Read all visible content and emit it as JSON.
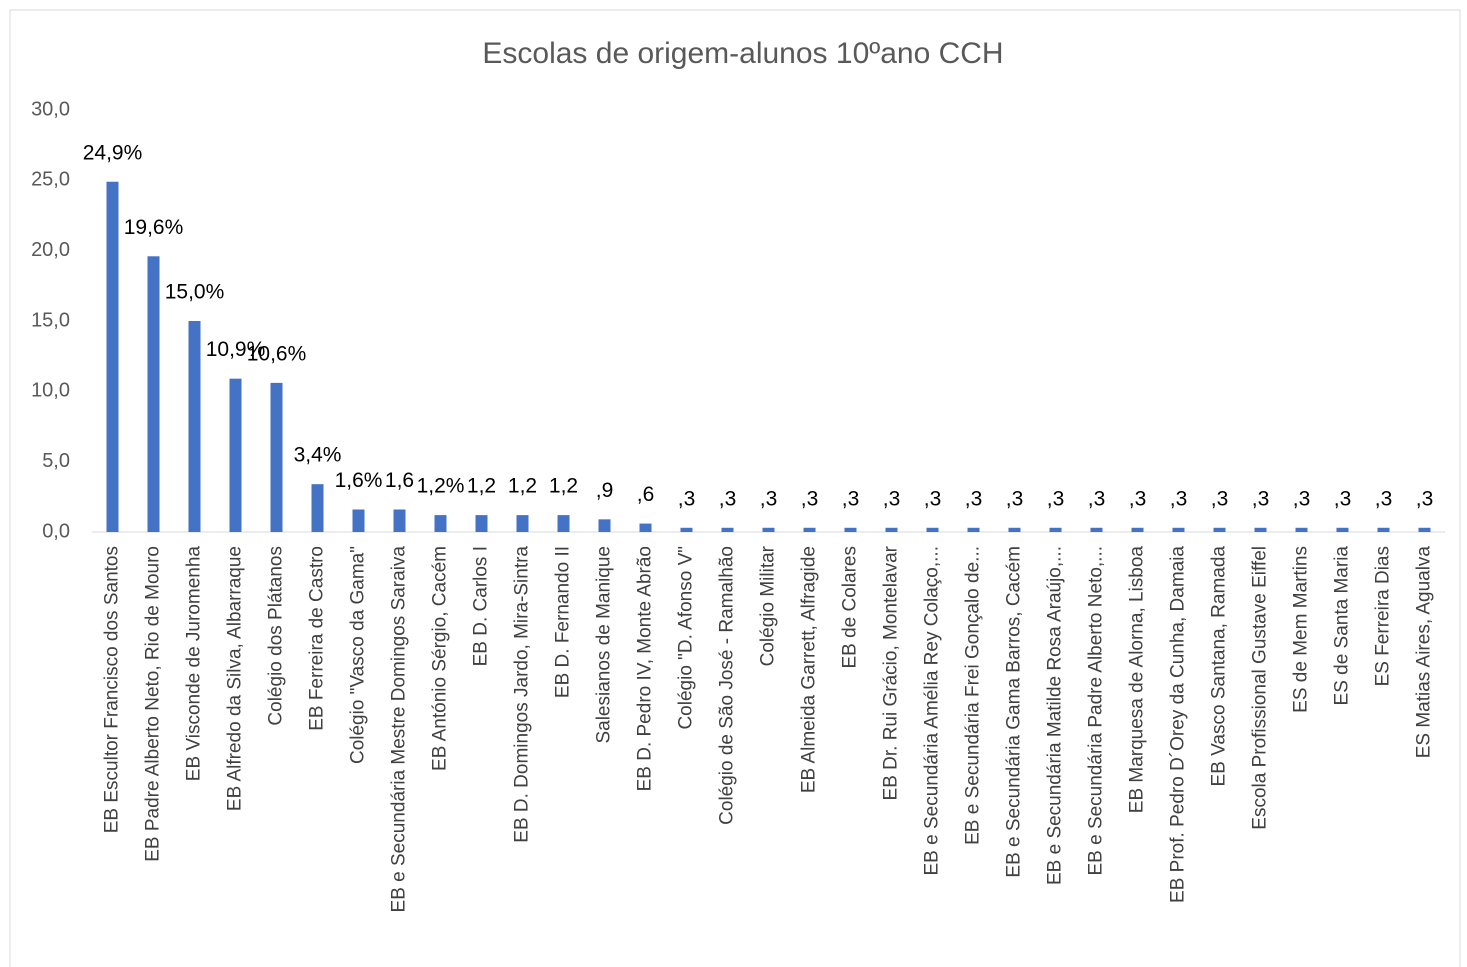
{
  "chart_data": {
    "type": "bar",
    "title": "Escolas de origem-alunos 10ºano CCH",
    "categories": [
      "EB Escultor Francisco dos Santos",
      "EB Padre Alberto Neto, Rio de Mouro",
      "EB Visconde de Juromenha",
      "EB Alfredo da Silva, Albarraque",
      "Colégio dos Plátanos",
      "EB Ferreira de Castro",
      "Colégio \"Vasco da Gama\"",
      "EB e Secundária Mestre Domingos Saraiva",
      "EB António Sérgio, Cacém",
      "EB D. Carlos I",
      "EB D. Domingos Jardo, Mira-Sintra",
      "EB D. Fernando II",
      "Salesianos de Manique",
      "EB D. Pedro IV, Monte Abrão",
      "Colégio \"D. Afonso V\"",
      "Colégio de São José - Ramalhão",
      "Colégio Militar",
      "EB Almeida Garrett, Alfragide",
      "EB de Colares",
      "EB Dr. Rui Grácio, Montelavar",
      "EB e Secundária Amélia Rey Colaço,...",
      "EB e Secundária Frei Gonçalo de...",
      "EB e Secundária Gama Barros, Cacém",
      "EB e Secundária Matilde Rosa Araújo,...",
      "EB e Secundária Padre Alberto Neto,...",
      "EB Marquesa de Alorna, Lisboa",
      "EB Prof. Pedro D´Orey da Cunha, Damaia",
      "EB Vasco Santana, Ramada",
      "Escola Profissional Gustave Eiffel",
      "ES de Mem Martins",
      "ES de Santa Maria",
      "ES Ferreira Dias",
      "ES Matias Aires, Agualva"
    ],
    "values": [
      24.9,
      19.6,
      15.0,
      10.9,
      10.6,
      3.4,
      1.6,
      1.6,
      1.2,
      1.2,
      1.2,
      1.2,
      0.9,
      0.6,
      0.3,
      0.3,
      0.3,
      0.3,
      0.3,
      0.3,
      0.3,
      0.3,
      0.3,
      0.3,
      0.3,
      0.3,
      0.3,
      0.3,
      0.3,
      0.3,
      0.3,
      0.3,
      0.3
    ],
    "value_labels": [
      "24,9%",
      "19,6%",
      "15,0%",
      "10,9%",
      "10,6%",
      "3,4%",
      "1,6%",
      "1,6",
      "1,2%",
      "1,2",
      "1,2",
      "1,2",
      ",9",
      ",6",
      ",3",
      ",3",
      ",3",
      ",3",
      ",3",
      ",3",
      ",3",
      ",3",
      ",3",
      ",3",
      ",3",
      ",3",
      ",3",
      ",3",
      ",3",
      ",3",
      ",3",
      ",3",
      ",3"
    ],
    "color": "#4472c4",
    "ylim": [
      0,
      30
    ],
    "yticks": [
      {
        "value": 0,
        "label": "0,0"
      },
      {
        "value": 5,
        "label": "5,0"
      },
      {
        "value": 10,
        "label": "10,0"
      },
      {
        "value": 15,
        "label": "15,0"
      },
      {
        "value": 20,
        "label": "20,0"
      },
      {
        "value": 25,
        "label": "25,0"
      },
      {
        "value": 30,
        "label": "30,0"
      }
    ],
    "grid": false
  }
}
